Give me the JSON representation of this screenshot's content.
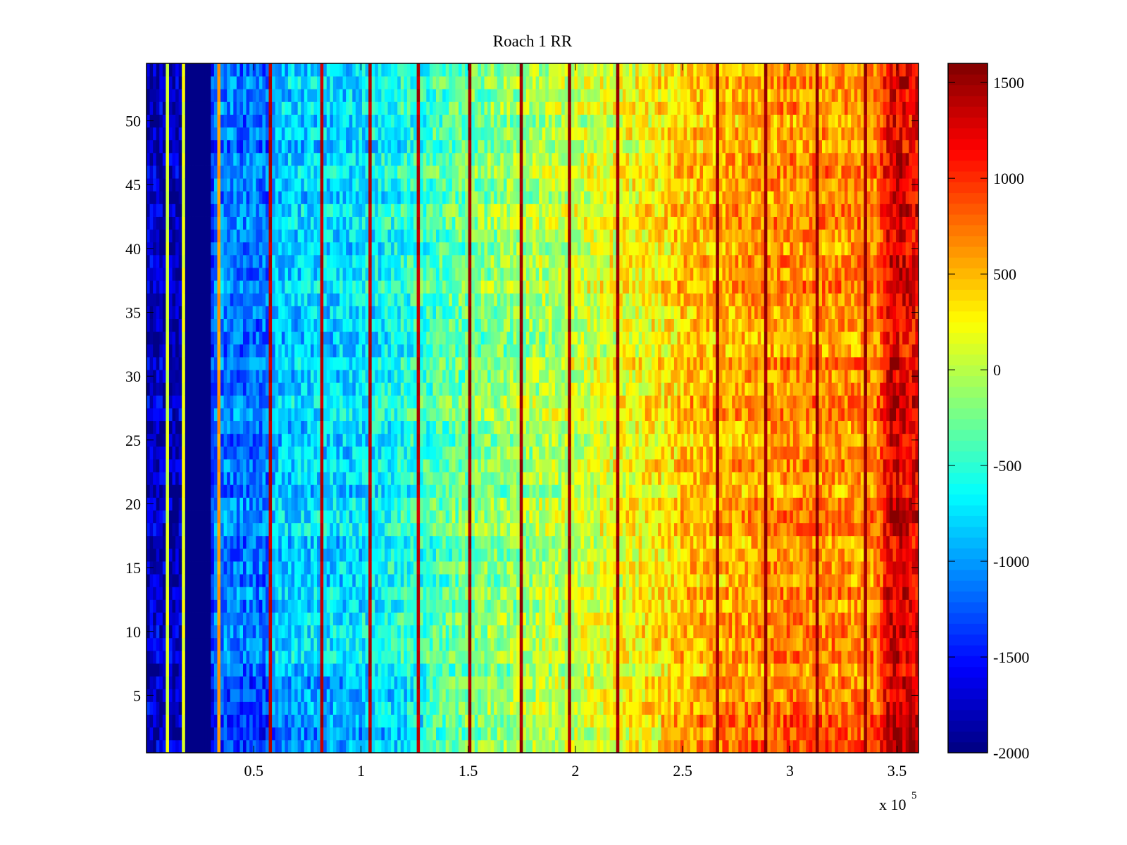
{
  "chart_data": {
    "type": "heatmap",
    "title": "Roach 1 RR",
    "xlabel": "",
    "ylabel": "",
    "colormap": "jet",
    "clim": [
      -2000,
      1600
    ],
    "xlim": [
      0,
      360000
    ],
    "ylim": [
      0.5,
      54.5
    ],
    "rows": 54,
    "xticks": [
      50000,
      100000,
      150000,
      200000,
      250000,
      300000,
      350000
    ],
    "xtick_labels": [
      "0.5",
      "1",
      "1.5",
      "2",
      "2.5",
      "3",
      "3.5"
    ],
    "x_exponent": {
      "base": "x 10",
      "power": "5"
    },
    "yticks": [
      5,
      10,
      15,
      20,
      25,
      30,
      35,
      40,
      45,
      50
    ],
    "ytick_labels": [
      "5",
      "10",
      "15",
      "20",
      "25",
      "30",
      "35",
      "40",
      "45",
      "50"
    ],
    "colorbar": {
      "ticks": [
        1500,
        1000,
        500,
        0,
        -500,
        -1000,
        -1500,
        -2000
      ],
      "tick_labels": [
        "1500",
        "1000",
        "500",
        "0",
        "-500",
        "-1000",
        "-1500",
        "-2000"
      ],
      "location": "right"
    },
    "column_profile": [
      {
        "x": 0,
        "value": -1750
      },
      {
        "x": 17000,
        "value": -1850
      },
      {
        "x": 18500,
        "value": -2000
      },
      {
        "x": 30000,
        "value": -2000
      },
      {
        "x": 31000,
        "value": -1100
      },
      {
        "x": 57000,
        "value": -1150
      },
      {
        "x": 60000,
        "value": -850
      },
      {
        "x": 100000,
        "value": -750
      },
      {
        "x": 130000,
        "value": -450
      },
      {
        "x": 150000,
        "value": -250
      },
      {
        "x": 200000,
        "value": 50
      },
      {
        "x": 240000,
        "value": 300
      },
      {
        "x": 250000,
        "value": 450
      },
      {
        "x": 300000,
        "value": 650
      },
      {
        "x": 340000,
        "value": 650
      },
      {
        "x": 347000,
        "value": 1300
      },
      {
        "x": 360000,
        "value": 1150
      }
    ],
    "streaks": [
      {
        "x": 9000,
        "value": 200
      },
      {
        "x": 17500,
        "value": 300
      },
      {
        "x": 33000,
        "value": 700
      },
      {
        "x": 58000,
        "value": 1500
      },
      {
        "x": 81000,
        "value": 1500
      },
      {
        "x": 104000,
        "value": 1500
      },
      {
        "x": 127000,
        "value": 1500
      },
      {
        "x": 150000,
        "value": 1600
      },
      {
        "x": 174000,
        "value": 1600
      },
      {
        "x": 197000,
        "value": 1600
      },
      {
        "x": 220000,
        "value": 1600
      },
      {
        "x": 266000,
        "value": 1600
      },
      {
        "x": 289000,
        "value": 1600
      },
      {
        "x": 312000,
        "value": 1600
      },
      {
        "x": 335000,
        "value": 1600
      }
    ]
  }
}
